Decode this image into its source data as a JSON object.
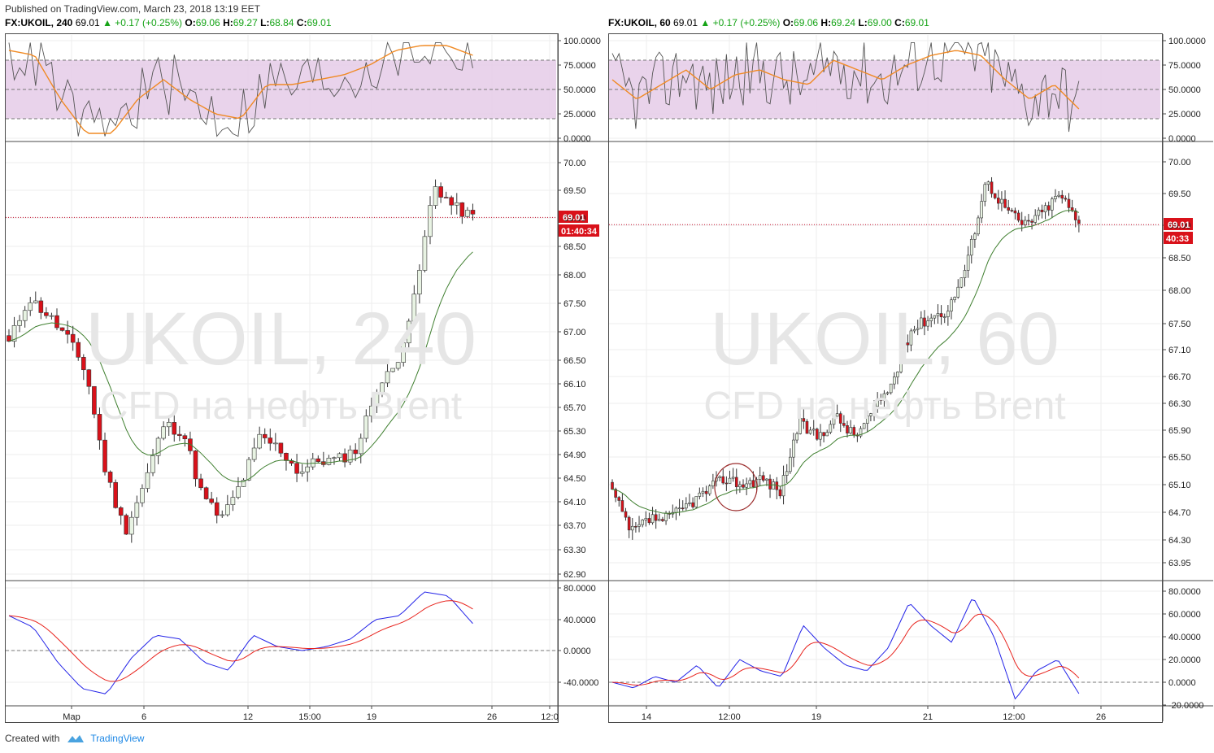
{
  "header": {
    "published": "Published on TradingView.com, March 23, 2018 13:19 EET"
  },
  "charts": [
    {
      "symbol": "FX:UKOIL, 240",
      "last": "69.01",
      "change": "▲ +0.17 (+0.25%)",
      "ohlc": {
        "o_label": "O:",
        "o": "69.06",
        "h_label": "H:",
        "h": "69.27",
        "l_label": "L:",
        "l": "68.84",
        "c_label": "C:",
        "c": "69.01"
      },
      "watermark": {
        "title": "UKOIL, 240",
        "subtitle": "CFD на нефть Brent"
      },
      "price_badge": "69.01",
      "countdown_badge": "01:40:34",
      "rsi_axis": [
        "100.0000",
        "75.0000",
        "50.0000",
        "25.0000",
        "0.0000"
      ],
      "price_axis": [
        "70.00",
        "69.50",
        "69.00",
        "68.50",
        "68.00",
        "67.50",
        "67.00",
        "66.50",
        "66.10",
        "65.70",
        "65.30",
        "64.90",
        "64.50",
        "64.10",
        "63.70",
        "63.30",
        "62.90"
      ],
      "macd_axis": [
        "80.0000",
        "40.0000",
        "0.0000",
        "-40.0000"
      ],
      "time_axis": [
        "Мар",
        "6",
        "12",
        "15:00",
        "19",
        "26",
        "12:0"
      ]
    },
    {
      "symbol": "FX:UKOIL, 60",
      "last": "69.01",
      "change": "▲ +0.17 (+0.25%)",
      "ohlc": {
        "o_label": "O:",
        "o": "69.06",
        "h_label": "H:",
        "h": "69.24",
        "l_label": "L:",
        "l": "69.00",
        "c_label": "C:",
        "c": "69.01"
      },
      "watermark": {
        "title": "UKOIL, 60",
        "subtitle": "CFD на нефть Brent"
      },
      "price_badge": "69.01",
      "countdown_badge": "40:33",
      "rsi_axis": [
        "100.0000",
        "75.0000",
        "50.0000",
        "25.0000",
        "0.0000"
      ],
      "price_axis": [
        "70.00",
        "69.50",
        "69.00",
        "68.50",
        "68.00",
        "67.50",
        "67.10",
        "66.70",
        "66.30",
        "65.90",
        "65.50",
        "65.10",
        "64.70",
        "64.30",
        "63.95"
      ],
      "macd_axis": [
        "80.0000",
        "60.0000",
        "40.0000",
        "20.0000",
        "0.0000",
        "-20.0000"
      ],
      "time_axis": [
        "14",
        "12:00",
        "19",
        "21",
        "12:00",
        "26"
      ]
    }
  ],
  "footer": {
    "created_with": "Created with",
    "brand": "TradingView"
  },
  "colors": {
    "up": "#e8f3e3",
    "down": "#d9111a",
    "ma": "#3f7f2f",
    "rsi": "#555",
    "rsi_ma": "#f08a24",
    "rsi_band": "#e3c8e6",
    "macd": "#2323e8",
    "signal": "#e8231d",
    "price_line": "#c8102e"
  }
}
